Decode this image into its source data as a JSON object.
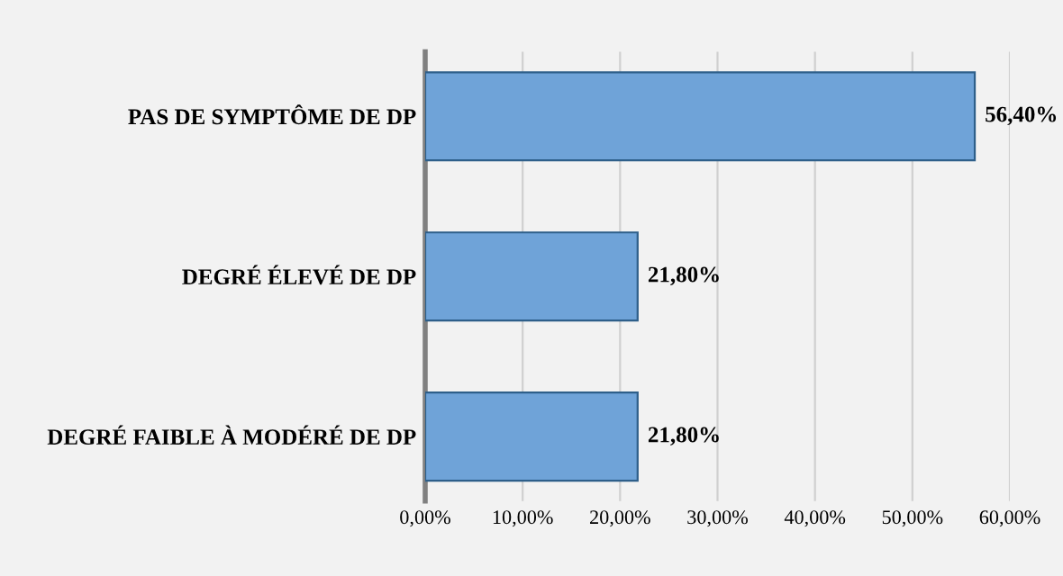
{
  "chart_data": {
    "type": "bar",
    "orientation": "horizontal",
    "categories": [
      "PAS DE SYMPTÔME DE DP",
      "DEGRÉ ÉLEVÉ DE DP",
      "DEGRÉ FAIBLE À MODÉRÉ DE DP"
    ],
    "values": [
      56.4,
      21.8,
      21.8
    ],
    "color": "#6fa3d8",
    "value_labels": [
      "56,40%",
      "21,80%",
      "21,80%"
    ],
    "xlim": [
      0,
      60
    ],
    "xticks": [
      {
        "value": 0,
        "label": "0,00%"
      },
      {
        "value": 10,
        "label": "10,00%"
      },
      {
        "value": 20,
        "label": "20,00%"
      },
      {
        "value": 30,
        "label": "30,00%"
      },
      {
        "value": 40,
        "label": "40,00%"
      },
      {
        "value": 50,
        "label": "50,00%"
      },
      {
        "value": 60,
        "label": "60,00%"
      }
    ],
    "grid": "x"
  }
}
